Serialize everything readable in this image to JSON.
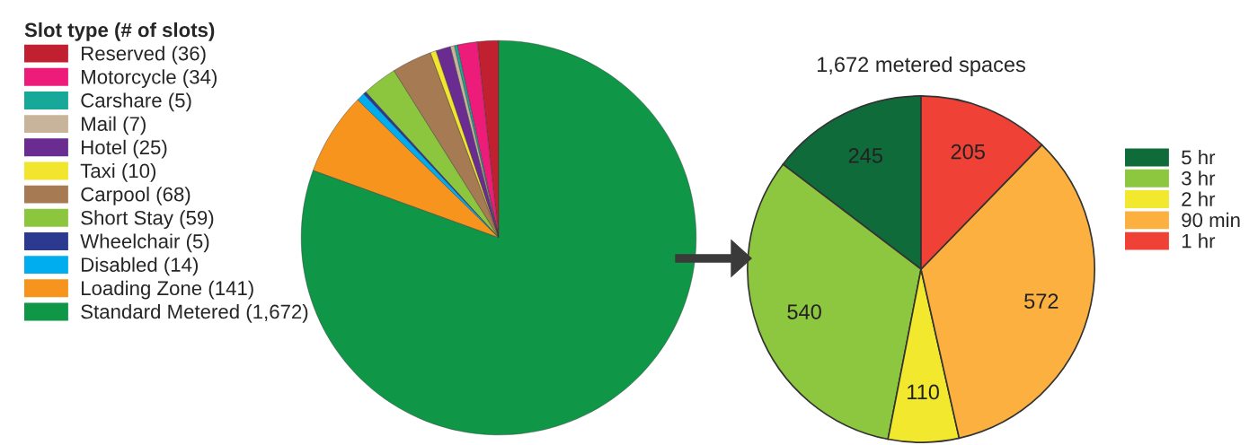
{
  "chart_data": [
    {
      "type": "pie",
      "legend_title": "Slot type (# of slots)",
      "legend": "left",
      "categories": [
        "Reserved (36)",
        "Motorcycle (34)",
        "Carshare (5)",
        "Mail (7)",
        "Hotel (25)",
        "Taxi (10)",
        "Carpool (68)",
        "Short Stay (59)",
        "Wheelchair (5)",
        "Disabled (14)",
        "Loading Zone (141)",
        "Standard Metered (1,672)"
      ],
      "values": [
        36,
        34,
        5,
        7,
        25,
        10,
        68,
        59,
        5,
        14,
        141,
        1672
      ],
      "colors": [
        "#c0202f",
        "#ed1c7a",
        "#17a89a",
        "#c8b49a",
        "#6a2c91",
        "#f2e52e",
        "#a67a52",
        "#8cc63f",
        "#2b3990",
        "#00aeef",
        "#f7941d",
        "#0f9647"
      ]
    },
    {
      "type": "pie",
      "title": "1,672 metered spaces",
      "legend": "right",
      "data_labels": true,
      "categories": [
        "5 hr",
        "3 hr",
        "2 hr",
        "90 min",
        "1 hr"
      ],
      "values": [
        245,
        540,
        110,
        572,
        205
      ],
      "colors": [
        "#0f6b3a",
        "#8dc63f",
        "#f2e82e",
        "#fbb040",
        "#ef4136"
      ]
    }
  ]
}
